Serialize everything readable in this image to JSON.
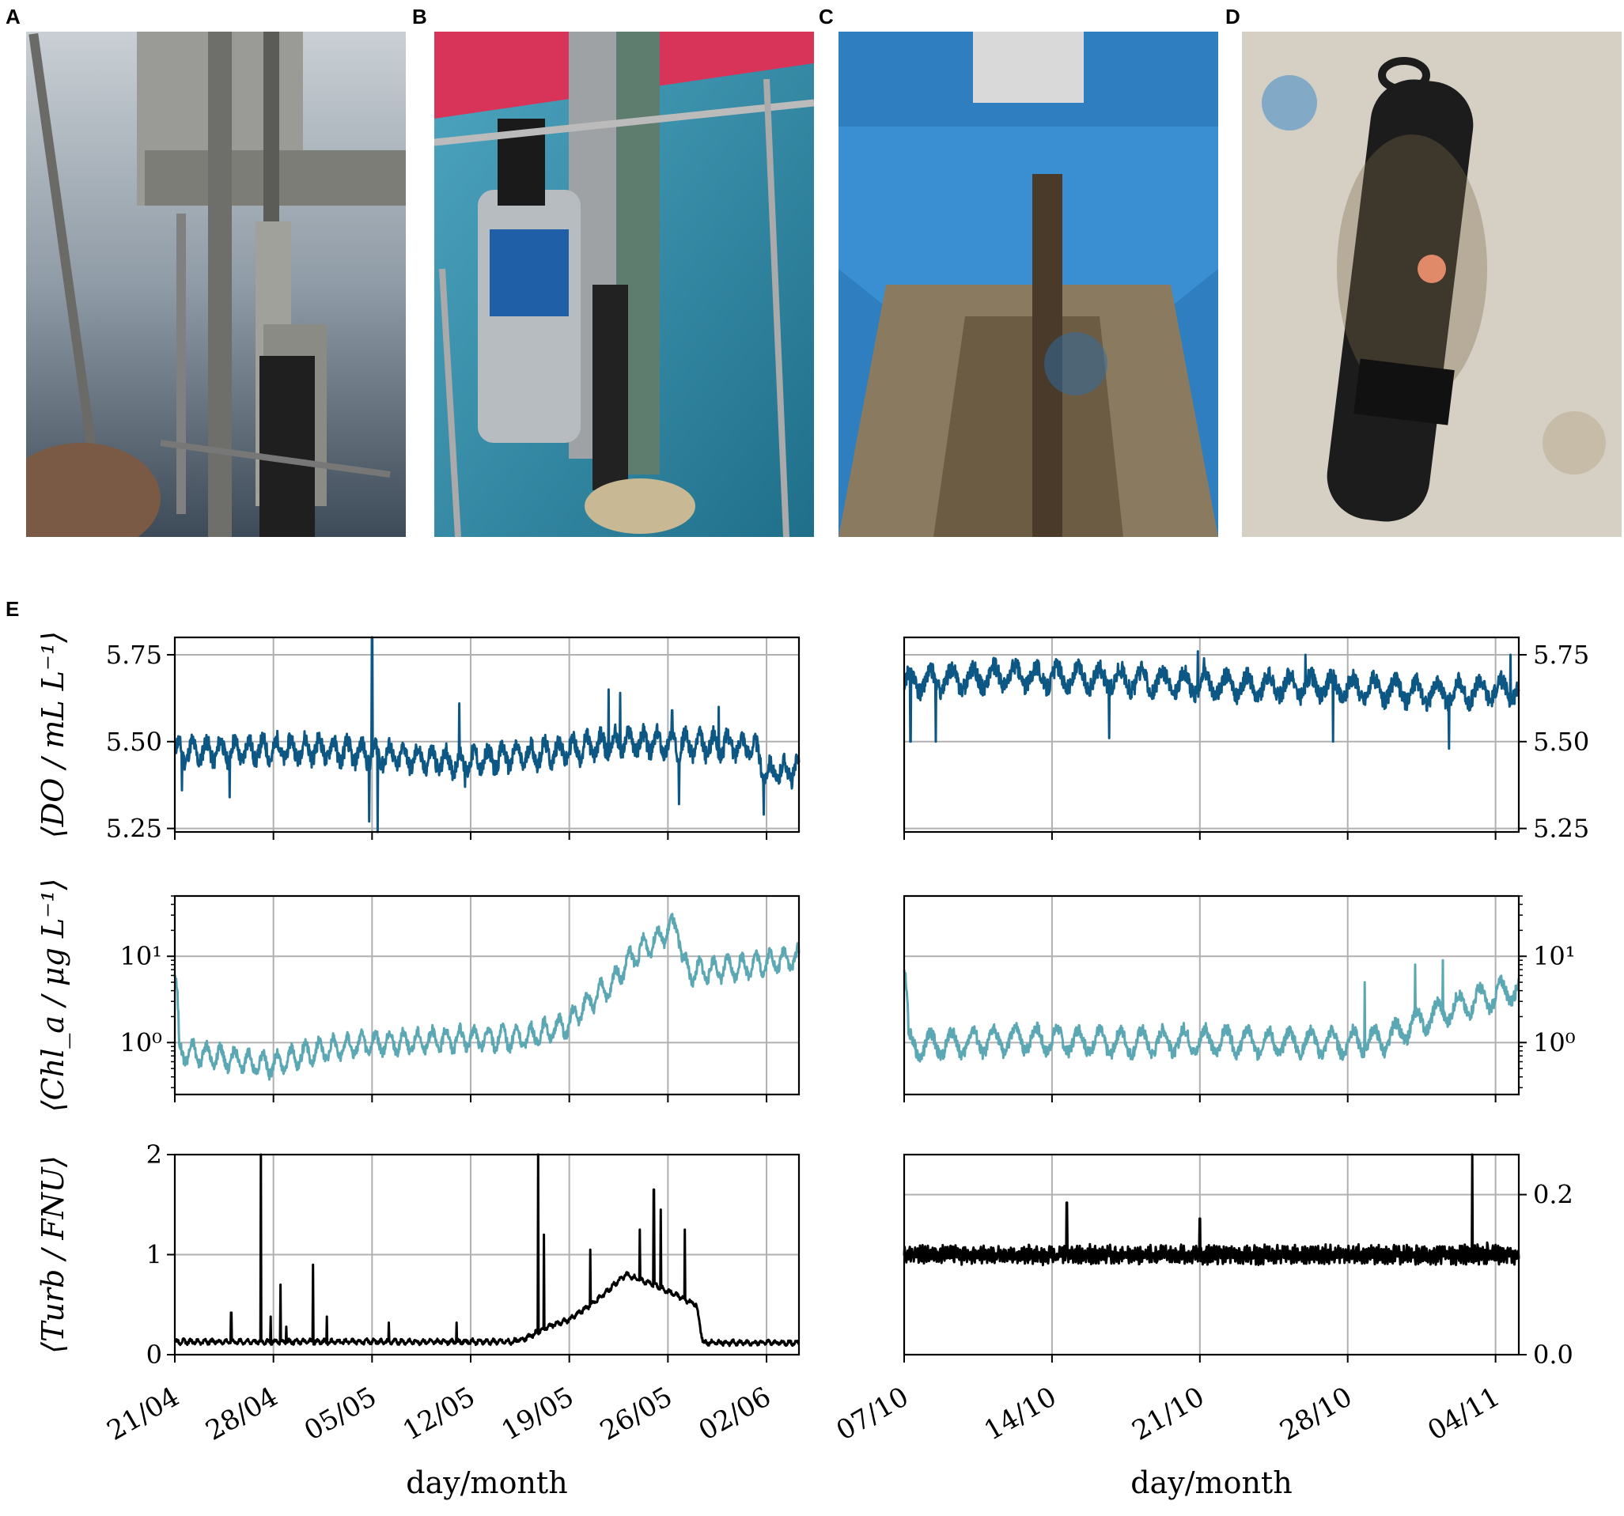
{
  "panels": {
    "A": "A",
    "B": "B",
    "C": "C",
    "D": "D",
    "E": "E"
  },
  "photos": [
    {
      "panel": "A",
      "subject": "stainless steel instrument frame with sensors over sea water",
      "colors": {
        "sky": "#9ea9b3",
        "metal": "#8e8e8e",
        "dark": "#2a2a2a"
      }
    },
    {
      "panel": "B",
      "subject": "sensor mooring with cylindrical sonde over turquoise sea",
      "colors": {
        "water": "#2f8fa8",
        "metal": "#b7bcc0",
        "red": "#d8345a"
      }
    },
    {
      "panel": "C",
      "subject": "fouled rod sensor standing in blue boat hull",
      "colors": {
        "boat": "#2f7fc0",
        "deck": "#7a6a50",
        "rod": "#4a3a2a"
      }
    },
    {
      "panel": "D",
      "subject": "biofouled black logger on white mesh",
      "colors": {
        "mesh": "#d6d0c4",
        "logger": "#1c1c1c",
        "growth": "#7a6a4a"
      }
    }
  ],
  "colors": {
    "do": "#0d5784",
    "chl": "#5ba8b4",
    "turb": "#000000",
    "grid": "#b0b0b0"
  },
  "chart_data": [
    {
      "id": "do-spring",
      "type": "line",
      "ylabel": "⟨DO / mL L⁻¹⟩",
      "ylim": [
        5.24,
        5.8
      ],
      "yticks": [
        "5.25",
        "5.50",
        "5.75"
      ],
      "ytick_values": [
        5.25,
        5.5,
        5.75
      ],
      "xlim": [
        0,
        44.3
      ],
      "series": [
        {
          "color": "#0d5784",
          "baseline": [
            [
              0,
              5.47
            ],
            [
              10,
              5.48
            ],
            [
              20,
              5.44
            ],
            [
              27,
              5.47
            ],
            [
              32,
              5.5
            ],
            [
              37,
              5.49
            ],
            [
              41,
              5.49
            ],
            [
              42,
              5.41
            ],
            [
              44,
              5.42
            ]
          ],
          "amp": 0.05,
          "period": 1,
          "spikes": [
            [
              0,
              5.5
            ],
            [
              0.5,
              5.36
            ],
            [
              1.2,
              5.52
            ],
            [
              3.9,
              5.34
            ],
            [
              14.0,
              5.8
            ],
            [
              13.8,
              5.27
            ],
            [
              14.4,
              5.24
            ],
            [
              20.2,
              5.61
            ],
            [
              20.6,
              5.37
            ],
            [
              30.8,
              5.65
            ],
            [
              31.6,
              5.64
            ],
            [
              35.3,
              5.59
            ],
            [
              35.8,
              5.32
            ],
            [
              38.6,
              5.6
            ],
            [
              41.8,
              5.29
            ]
          ]
        }
      ]
    },
    {
      "id": "do-autumn",
      "type": "line",
      "ylim": [
        5.24,
        5.8
      ],
      "yaxis_side": "right",
      "yticks": [
        "5.25",
        "5.50",
        "5.75"
      ],
      "ytick_values": [
        5.25,
        5.5,
        5.75
      ],
      "xlim": [
        0,
        29.1
      ],
      "series": [
        {
          "color": "#0d5784",
          "baseline": [
            [
              0,
              5.67
            ],
            [
              5,
              5.69
            ],
            [
              10,
              5.68
            ],
            [
              15,
              5.66
            ],
            [
              20,
              5.66
            ],
            [
              25,
              5.64
            ],
            [
              29,
              5.65
            ]
          ],
          "amp": 0.05,
          "period": 1,
          "spikes": [
            [
              0.3,
              5.5
            ],
            [
              1.5,
              5.5
            ],
            [
              9.7,
              5.51
            ],
            [
              13.9,
              5.76
            ],
            [
              14.2,
              5.74
            ],
            [
              19.0,
              5.75
            ],
            [
              20.3,
              5.5
            ],
            [
              28.7,
              5.75
            ],
            [
              25.8,
              5.48
            ]
          ]
        }
      ]
    },
    {
      "id": "chl-spring",
      "type": "line",
      "scale": "log",
      "ylabel": "⟨Chl_a / μg L⁻¹⟩",
      "ylim": [
        0.25,
        50
      ],
      "yticks": [
        "10⁰",
        "10¹"
      ],
      "ytick_values": [
        1,
        10
      ],
      "xlim": [
        0,
        44.3
      ],
      "series": [
        {
          "color": "#5ba8b4",
          "baseline": [
            [
              0,
              6
            ],
            [
              0.3,
              0.8
            ],
            [
              5,
              0.6
            ],
            [
              7,
              0.55
            ],
            [
              10,
              0.8
            ],
            [
              13,
              0.95
            ],
            [
              20,
              1.1
            ],
            [
              25,
              1.15
            ],
            [
              28,
              1.6
            ],
            [
              31,
              4.5
            ],
            [
              34,
              15
            ],
            [
              35.7,
              23
            ],
            [
              36.0,
              9
            ],
            [
              36.5,
              6.5
            ],
            [
              40,
              7.5
            ],
            [
              44,
              9.5
            ]
          ],
          "amp": 0.12,
          "period": 1,
          "spikes": []
        }
      ]
    },
    {
      "id": "chl-autumn",
      "type": "line",
      "scale": "log",
      "ylim": [
        0.25,
        50
      ],
      "yaxis_side": "right",
      "yticks": [
        "10⁰",
        "10¹"
      ],
      "ytick_values": [
        1,
        10
      ],
      "xlim": [
        0,
        29.1
      ],
      "series": [
        {
          "color": "#5ba8b4",
          "baseline": [
            [
              0,
              7
            ],
            [
              0.2,
              0.9
            ],
            [
              3,
              1.0
            ],
            [
              6,
              1.1
            ],
            [
              10,
              1.0
            ],
            [
              14,
              1.05
            ],
            [
              18,
              1.0
            ],
            [
              21,
              1.0
            ],
            [
              23,
              1.1
            ],
            [
              26,
              2.5
            ],
            [
              28,
              3.5
            ],
            [
              31,
              6
            ],
            [
              31.5,
              25
            ],
            [
              33,
              30
            ],
            [
              36,
              32
            ],
            [
              37,
              20
            ]
          ],
          "amp": 0.14,
          "period": 1,
          "spikes": [
            [
              21.8,
              5
            ],
            [
              24.2,
              8
            ],
            [
              25.5,
              9
            ]
          ]
        }
      ]
    },
    {
      "id": "turb-spring",
      "type": "line",
      "ylabel": "⟨Turb / FNU⟩",
      "ylim": [
        0,
        2
      ],
      "yticks": [
        "0",
        "1",
        "2"
      ],
      "ytick_values": [
        0,
        1,
        2
      ],
      "xlim": [
        0,
        44.3
      ],
      "series": [
        {
          "color": "#000000",
          "baseline": [
            [
              0,
              0.13
            ],
            [
              24,
              0.13
            ],
            [
              25,
              0.17
            ],
            [
              26.5,
              0.28
            ],
            [
              28,
              0.35
            ],
            [
              30,
              0.55
            ],
            [
              32,
              0.8
            ],
            [
              34,
              0.7
            ],
            [
              37,
              0.5
            ],
            [
              37.5,
              0.12
            ],
            [
              44,
              0.12
            ]
          ],
          "amp": 0.03,
          "period": 0.5,
          "spikes": [
            [
              4.0,
              0.42
            ],
            [
              6.1,
              2.0
            ],
            [
              6.8,
              0.38
            ],
            [
              7.5,
              0.7
            ],
            [
              7.9,
              0.28
            ],
            [
              9.8,
              0.9
            ],
            [
              10.8,
              0.38
            ],
            [
              15.2,
              0.32
            ],
            [
              20.0,
              0.32
            ],
            [
              25.8,
              2.0
            ],
            [
              26.2,
              1.2
            ],
            [
              29.5,
              1.05
            ],
            [
              33.0,
              1.25
            ],
            [
              34.0,
              1.65
            ],
            [
              34.5,
              1.45
            ],
            [
              36.2,
              1.25
            ]
          ]
        }
      ]
    },
    {
      "id": "turb-autumn",
      "type": "line",
      "ylim": [
        0,
        0.25
      ],
      "yaxis_side": "right",
      "yticks": [
        "0.0",
        "0.2"
      ],
      "ytick_values": [
        0,
        0.2
      ],
      "xlim": [
        0,
        29.1
      ],
      "series": [
        {
          "color": "#000000",
          "baseline": [
            [
              0,
              0.125
            ],
            [
              29,
              0.125
            ]
          ],
          "amp": 0.012,
          "period": 0.12,
          "spikes": [
            [
              7.7,
              0.19
            ],
            [
              14.0,
              0.17
            ],
            [
              26.9,
              0.25
            ],
            [
              27.6,
              0.14
            ]
          ]
        }
      ]
    }
  ],
  "axes_x": {
    "spring": {
      "ticks": [
        "21/04",
        "28/04",
        "05/05",
        "12/05",
        "19/05",
        "26/05",
        "02/06"
      ],
      "tick_values": [
        0,
        7,
        14,
        21,
        28,
        35,
        42
      ],
      "label": "day/month"
    },
    "autumn": {
      "ticks": [
        "07/10",
        "14/10",
        "21/10",
        "28/10",
        "04/11"
      ],
      "tick_values": [
        0,
        7,
        14,
        21,
        28
      ],
      "label": "day/month"
    }
  }
}
